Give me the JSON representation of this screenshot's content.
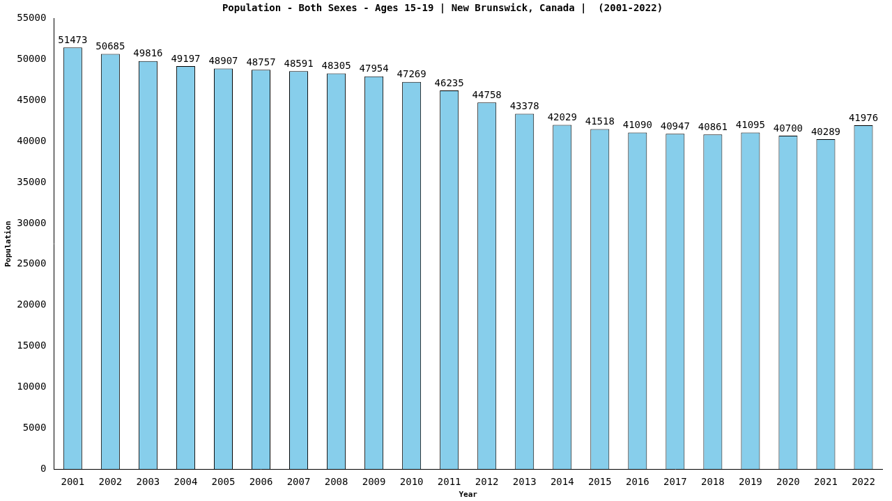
{
  "chart_data": {
    "type": "bar",
    "title": "Population - Both Sexes - Ages 15-19 | New Brunswick, Canada |  (2001-2022)",
    "x_label": "Year",
    "y_label": "Population",
    "categories": [
      "2001",
      "2002",
      "2003",
      "2004",
      "2005",
      "2006",
      "2007",
      "2008",
      "2009",
      "2010",
      "2011",
      "2012",
      "2013",
      "2014",
      "2015",
      "2016",
      "2017",
      "2018",
      "2019",
      "2020",
      "2021",
      "2022"
    ],
    "values": [
      51473,
      50685,
      49816,
      49197,
      48907,
      48757,
      48591,
      48305,
      47954,
      47269,
      46235,
      44758,
      43378,
      42029,
      41518,
      41090,
      40947,
      40861,
      41095,
      40700,
      40289,
      41976
    ],
    "color": "#87ceeb",
    "ylim": [
      0,
      55000
    ],
    "yticks": [
      0,
      5000,
      10000,
      15000,
      20000,
      25000,
      30000,
      35000,
      40000,
      45000,
      50000,
      55000
    ],
    "grid": false,
    "data_labels": true
  }
}
